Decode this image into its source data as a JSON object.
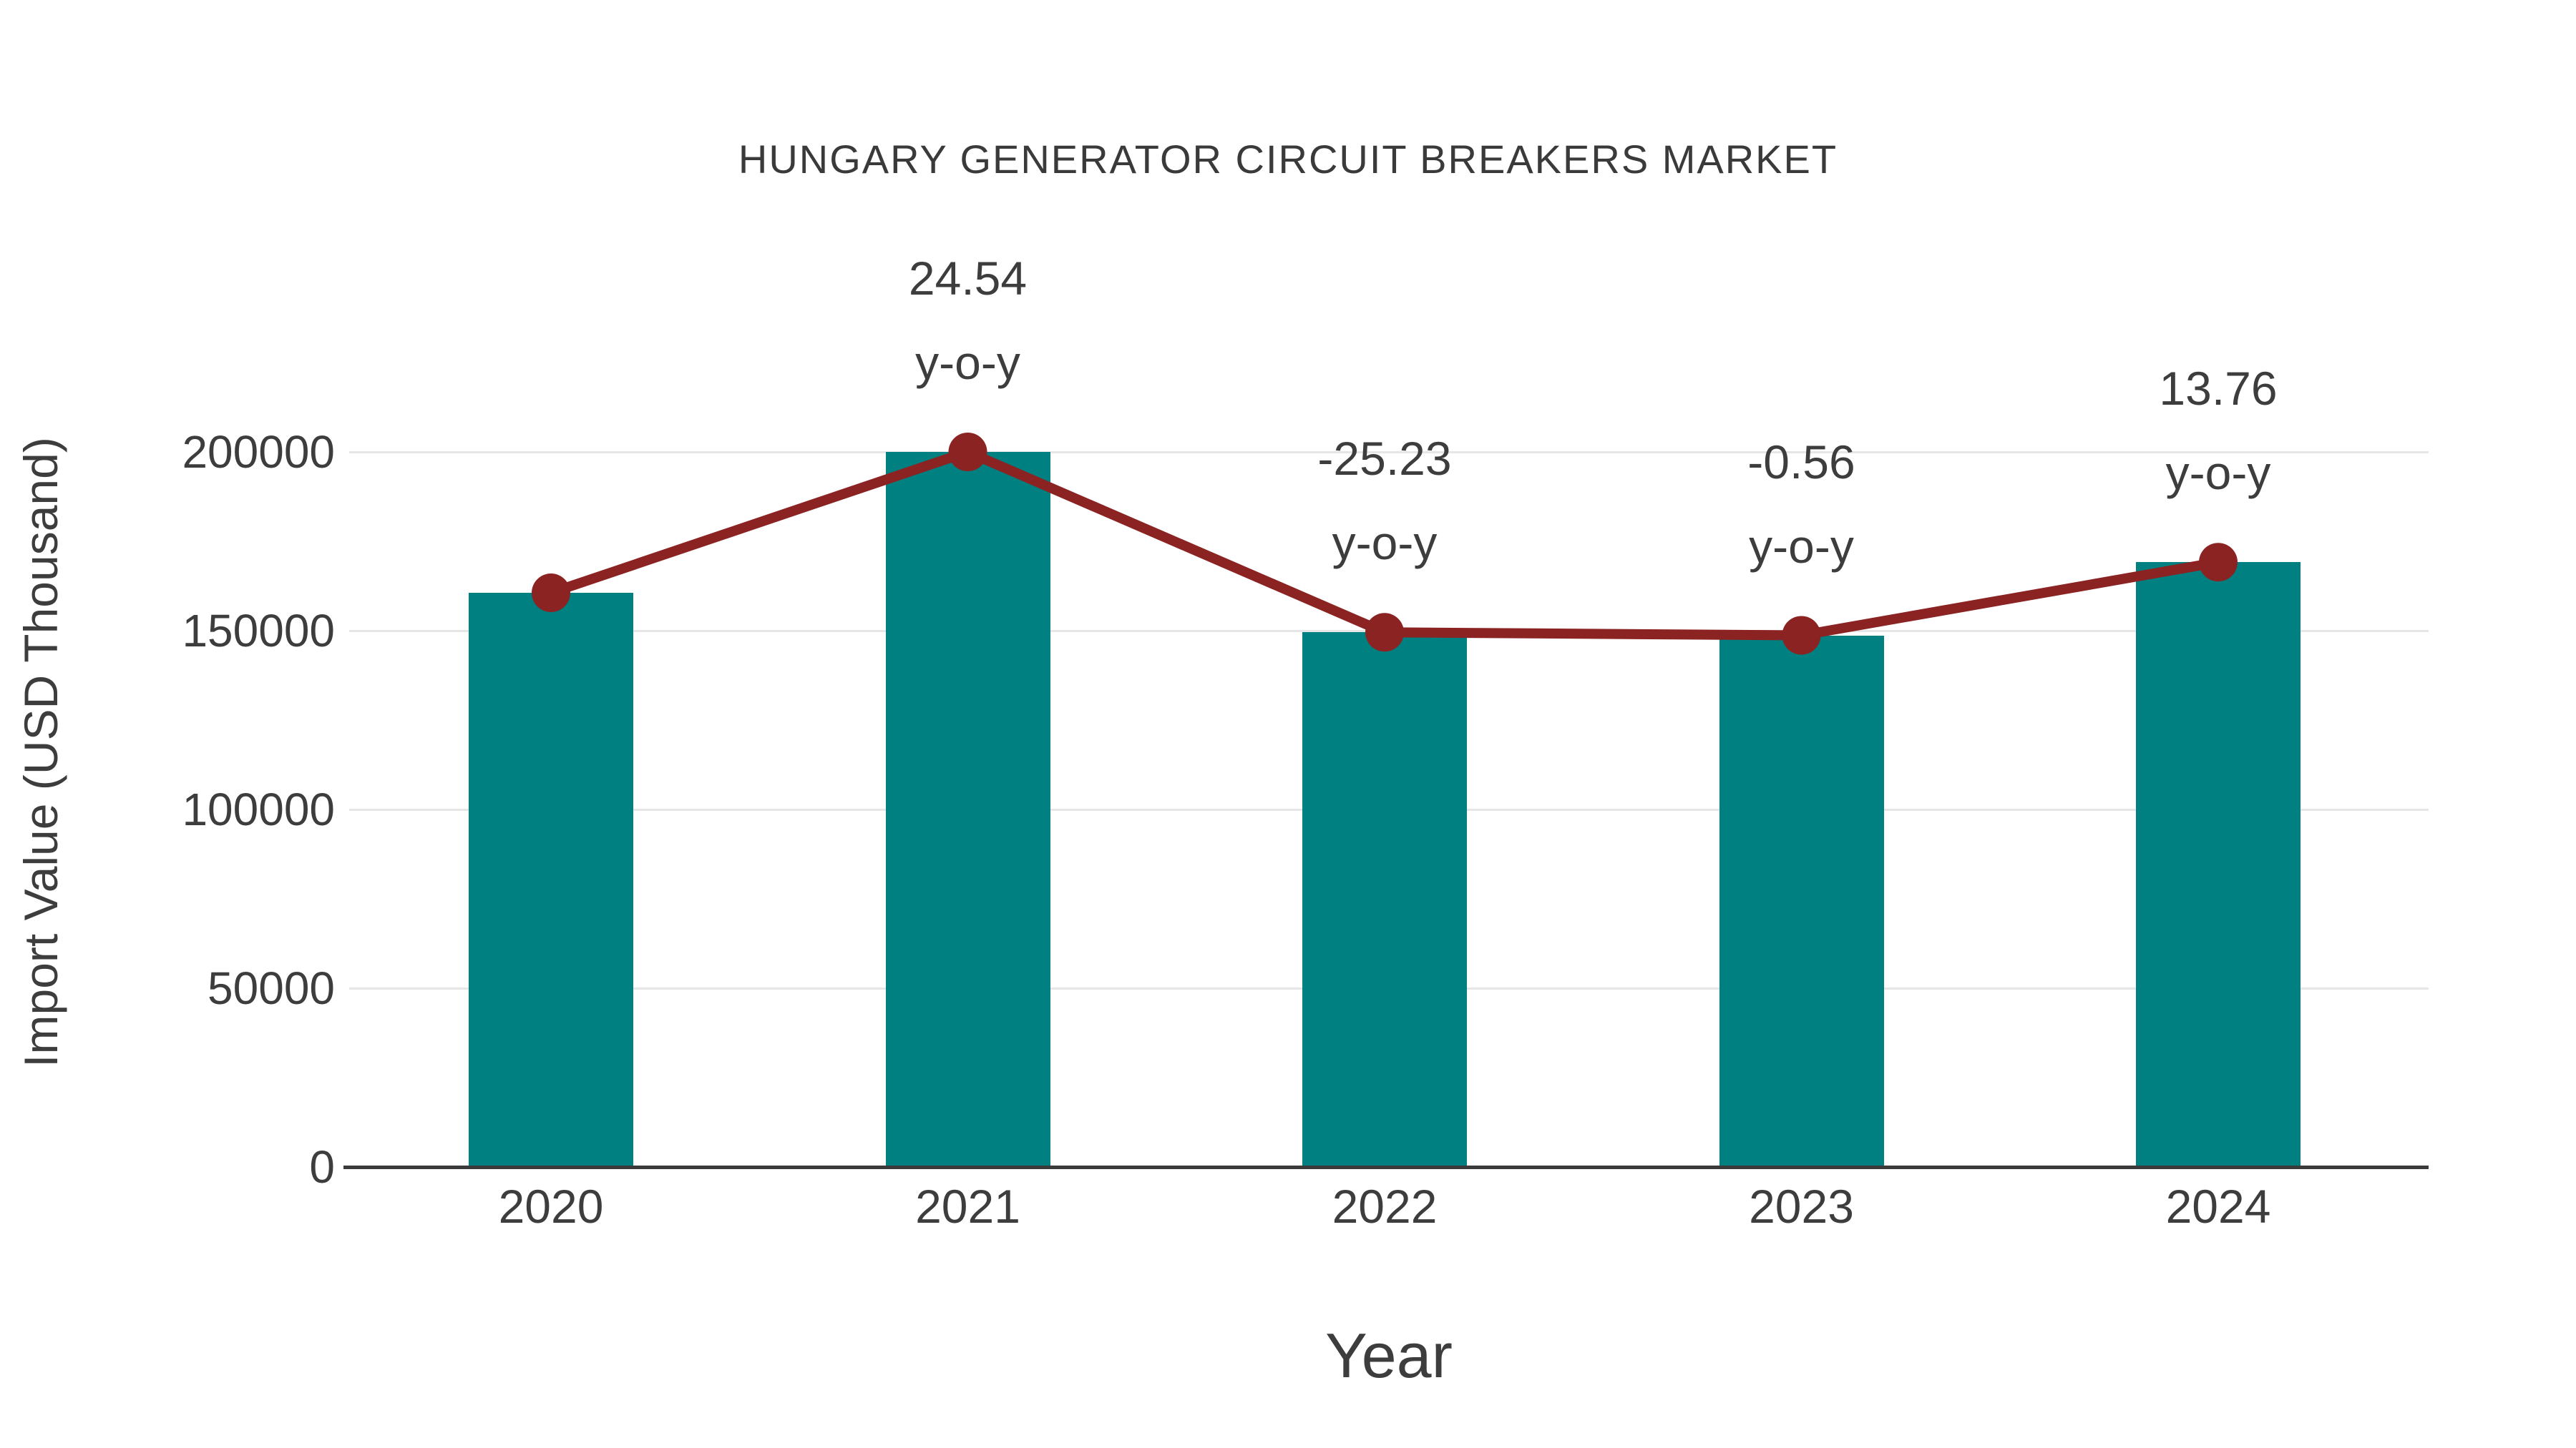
{
  "chart_data": {
    "type": "bar",
    "title": "HUNGARY GENERATOR CIRCUIT BREAKERS MARKET",
    "xlabel": "Year",
    "ylabel": "Import Value (USD Thousand)",
    "categories": [
      "2020",
      "2021",
      "2022",
      "2023",
      "2024"
    ],
    "series": [
      {
        "name": "import-value-bars",
        "type": "bar",
        "color": "#008080",
        "values": [
          160590,
          200000,
          149540,
          148700,
          169160
        ]
      },
      {
        "name": "yoy-trend-line",
        "type": "line",
        "color": "#8B2323",
        "values": [
          160590,
          200000,
          149540,
          148700,
          169160
        ],
        "yoy_percent": [
          null,
          24.54,
          -25.23,
          -0.56,
          13.76
        ]
      }
    ],
    "annotations": [
      {
        "category": "2021",
        "lines": [
          "24.54",
          "y-o-y"
        ]
      },
      {
        "category": "2022",
        "lines": [
          "-25.23",
          "y-o-y"
        ]
      },
      {
        "category": "2023",
        "lines": [
          "-0.56",
          "y-o-y"
        ]
      },
      {
        "category": "2024",
        "lines": [
          "13.76",
          "y-o-y"
        ]
      }
    ],
    "yticks": [
      0,
      50000,
      100000,
      150000,
      200000
    ],
    "ylim": [
      0,
      215000
    ],
    "grid": true,
    "legend_position": "none",
    "colors": {
      "bar": "#008080",
      "line": "#8B2323",
      "gridline": "#e6e6e6",
      "axis": "#3a3a3a",
      "text": "#3d3d3d",
      "background": "#ffffff"
    }
  }
}
